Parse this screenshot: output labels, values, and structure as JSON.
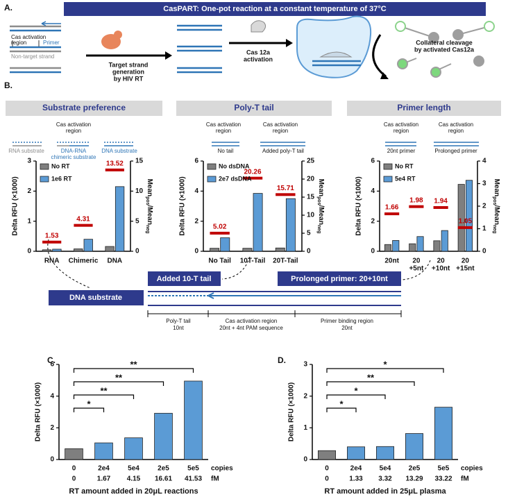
{
  "figure": {
    "panel_labels": [
      "A.",
      "B.",
      "C.",
      "D."
    ],
    "header": "CasPART: One-pot reaction at a constant temperature of 37°C",
    "panel_a": {
      "cas_region": [
        "Cas activation",
        "region"
      ],
      "primer": "Primer",
      "non_target": "Non-target strand",
      "step1": [
        "Target strand",
        "generation",
        "by HIV RT"
      ],
      "step2": [
        "Cas 12a",
        "activation"
      ],
      "step3": [
        "Collateral cleavage",
        "by activated Cas12a"
      ]
    },
    "panel_b_schemes": {
      "substrate": [
        "RNA substrate",
        "DNA-RNA",
        "chimeric substrate",
        "DNA substrate"
      ],
      "polyt": [
        "No tail",
        "Added poly-T tail"
      ],
      "primer": [
        "20nt primer",
        "Prolonged primer"
      ]
    },
    "substrate_scheme": {
      "tail_box": "Added 10-T tail",
      "primer_box": "Prolonged primer: 20+10nt",
      "dna_box": "DNA substrate",
      "regions": [
        [
          "Poly-T tail",
          "10nt"
        ],
        [
          "Cas activation region",
          "20nt + 4nt PAM sequence"
        ],
        [
          "Primer binding region",
          "20nt"
        ]
      ]
    }
  },
  "chart_data": [
    {
      "type": "dual-bar",
      "title": "Substrate preference",
      "categories": [
        "RNA",
        "Chimeric",
        "DNA"
      ],
      "series": [
        {
          "name": "No RT",
          "color": "#7f7f7f",
          "values": [
            0.05,
            0.08,
            0.16
          ]
        },
        {
          "name": "1e6 RT",
          "color": "#5b9bd5",
          "values": [
            0.07,
            0.4,
            2.15
          ]
        },
        {
          "color": "#c00000",
          "axis": "y2",
          "values": [
            1.53,
            4.31,
            13.52
          ]
        }
      ],
      "ylabel": "Delta RFU (×1000)",
      "y2label": [
        "Mean",
        "pos",
        "/Mean",
        "neg"
      ],
      "ylim": [
        0,
        3
      ],
      "yticks": [
        0,
        1,
        2,
        3
      ],
      "y2lim": [
        0,
        15
      ],
      "y2ticks": [
        0,
        5,
        10,
        15
      ],
      "legend": "upper-left"
    },
    {
      "type": "dual-bar",
      "title": "Poly-T tail",
      "categories": [
        "No Tail",
        "10T-Tail",
        "20T-Tail"
      ],
      "series": [
        {
          "name": "No dsDNA",
          "color": "#7f7f7f",
          "values": [
            0.2,
            0.2,
            0.22
          ]
        },
        {
          "name": "2e7 dsDNA",
          "color": "#5b9bd5",
          "values": [
            0.9,
            3.85,
            3.5
          ]
        },
        {
          "color": "#c00000",
          "axis": "y2",
          "values": [
            5.02,
            20.26,
            15.71
          ]
        }
      ],
      "ylabel": "Delta RFU (×1000)",
      "y2label": [
        "Mean",
        "pos",
        "/Mean",
        "neg"
      ],
      "ylim": [
        0,
        6
      ],
      "yticks": [
        0,
        2,
        4,
        6
      ],
      "y2lim": [
        0,
        25
      ],
      "y2ticks": [
        0,
        5,
        10,
        15,
        20,
        25
      ],
      "legend": "upper-left"
    },
    {
      "type": "dual-bar",
      "title": "Primer length",
      "categories": [
        [
          "20nt"
        ],
        [
          "20",
          "+5nt"
        ],
        [
          "20",
          "+10nt"
        ],
        [
          "20",
          "+15nt"
        ]
      ],
      "series": [
        {
          "name": "No RT",
          "color": "#7f7f7f",
          "values": [
            0.45,
            0.5,
            0.7,
            4.45
          ]
        },
        {
          "name": "5e4 RT",
          "color": "#5b9bd5",
          "values": [
            0.72,
            0.98,
            1.38,
            4.72
          ]
        },
        {
          "color": "#c00000",
          "axis": "y2",
          "values": [
            1.66,
            1.98,
            1.94,
            1.05
          ]
        }
      ],
      "ylabel": "Delta RFU (×1000)",
      "y2label": [
        "Mean",
        "pos",
        "/Mean",
        "neg"
      ],
      "ylim": [
        0,
        6
      ],
      "yticks": [
        0,
        2,
        4,
        6
      ],
      "y2lim": [
        0,
        4
      ],
      "y2ticks": [
        0,
        1,
        2,
        3,
        4
      ],
      "legend": "upper-left"
    },
    {
      "type": "bar",
      "categories": [
        "0",
        "2e4",
        "5e4",
        "2e5",
        "5e5"
      ],
      "categories2": [
        "0",
        "1.67",
        "4.15",
        "16.61",
        "41.53"
      ],
      "units": [
        "copies",
        "fM"
      ],
      "values": [
        0.68,
        1.05,
        1.37,
        2.92,
        4.95
      ],
      "colors": [
        "#7f7f7f",
        "#5b9bd5",
        "#5b9bd5",
        "#5b9bd5",
        "#5b9bd5"
      ],
      "ylabel": "Delta RFU (×1000)",
      "xlabel": "RT amount added in 20μL reactions",
      "ylim": [
        0,
        6
      ],
      "yticks": [
        0,
        2,
        4,
        6
      ],
      "significance": [
        {
          "from": 0,
          "to": 1,
          "label": "*"
        },
        {
          "from": 0,
          "to": 2,
          "label": "**"
        },
        {
          "from": 0,
          "to": 3,
          "label": "**"
        },
        {
          "from": 0,
          "to": 4,
          "label": "**"
        }
      ]
    },
    {
      "type": "bar",
      "categories": [
        "0",
        "2e4",
        "5e4",
        "2e5",
        "5e5"
      ],
      "categories2": [
        "0",
        "1.33",
        "3.32",
        "13.29",
        "33.22"
      ],
      "units": [
        "copies",
        "fM"
      ],
      "values": [
        0.28,
        0.4,
        0.41,
        0.82,
        1.65
      ],
      "colors": [
        "#7f7f7f",
        "#5b9bd5",
        "#5b9bd5",
        "#5b9bd5",
        "#5b9bd5"
      ],
      "ylabel": "Delta RFU (×1000)",
      "xlabel": "RT amount added in 25μL plasma",
      "ylim": [
        0,
        3
      ],
      "yticks": [
        0,
        1,
        2,
        3
      ],
      "significance": [
        {
          "from": 0,
          "to": 1,
          "label": "*"
        },
        {
          "from": 0,
          "to": 2,
          "label": "*"
        },
        {
          "from": 0,
          "to": 3,
          "label": "**"
        },
        {
          "from": 0,
          "to": 4,
          "label": "*"
        }
      ]
    }
  ]
}
